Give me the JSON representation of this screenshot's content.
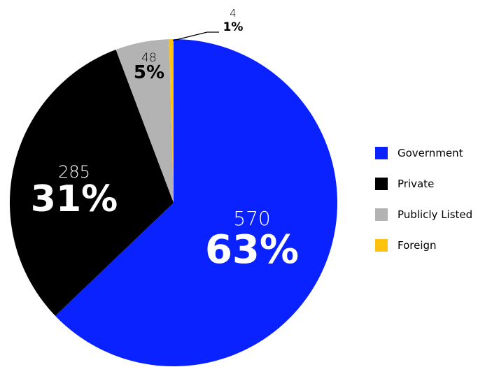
{
  "chart_data": {
    "type": "pie",
    "title": "",
    "colors": {
      "Government": "#0a22ff",
      "Private": "#000000",
      "Publicly Listed": "#b3b3b3",
      "Foreign": "#ffc20e"
    },
    "slices": [
      {
        "label": "Government",
        "value": 570,
        "percent_label": "63%",
        "value_label": "570"
      },
      {
        "label": "Private",
        "value": 285,
        "percent_label": "31%",
        "value_label": "285"
      },
      {
        "label": "Publicly Listed",
        "value": 48,
        "percent_label": "5%",
        "value_label": "48"
      },
      {
        "label": "Foreign",
        "value": 4,
        "percent_label": "1%",
        "value_label": "4"
      }
    ],
    "legend_position": "right"
  }
}
